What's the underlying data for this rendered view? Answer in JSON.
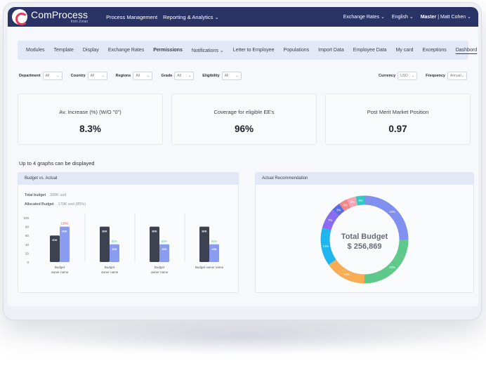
{
  "brand": {
    "name": "ComProcess",
    "sub": "from Zoran"
  },
  "topnav": {
    "process": "Process Management",
    "reporting": "Reporting & Analytics",
    "reporting_caret": "⌄"
  },
  "topright": {
    "exchange": "Exchange Rates ⌄",
    "language": "English ⌄",
    "role": "Master",
    "user": " | Matt Cohen ⌄"
  },
  "tabs": [
    "Modules",
    "Template",
    "Display",
    "Exchange Rates",
    "Permissions",
    "Notifications ⌄",
    "Letter to Employee",
    "Populations",
    "Import Data",
    "Employee Data",
    "My card",
    "Exceptions",
    "Dashbord"
  ],
  "filters": [
    {
      "label": "Department",
      "value": "All"
    },
    {
      "label": "Country",
      "value": "All"
    },
    {
      "label": "Regions",
      "value": "All"
    },
    {
      "label": "Grade",
      "value": "All"
    },
    {
      "label": "Eligibility",
      "value": "All"
    }
  ],
  "filters_right": [
    {
      "label": "Currency",
      "value": "USD"
    },
    {
      "label": "Frequency",
      "value": "Annual"
    }
  ],
  "kpis": [
    {
      "label": "Av. Increase (%) (W/O \"0\")",
      "value": "8.3%"
    },
    {
      "label": "Coverage for eligible EE's",
      "value": "96%"
    },
    {
      "label": "Post Merit Market Position",
      "value": "0.97"
    }
  ],
  "graphs_note": "Up to 4 graphs can be displayed",
  "budget_panel": {
    "title": "Budget vs. Actual",
    "total_label": "Total budget",
    "total_value": "200K usd",
    "allocated_label": "Allocated Budget",
    "allocated_value": "170K usd (85%)"
  },
  "donut_panel": {
    "title": "Actual Recommendation",
    "center_title": "Total Budget",
    "center_value": "$ 256,869"
  },
  "colors": {
    "navy": "#2a3366",
    "dark_bar": "#3d4250",
    "blue_bar": "#8a9cf0",
    "red": "#e4415c",
    "green": "#58c28e",
    "tab_bg": "#e3e8f6"
  },
  "chart_data": [
    {
      "type": "bar",
      "title": "Budget vs. Actual",
      "yticks": [
        "100",
        "80",
        "60",
        "40",
        "20",
        "0"
      ],
      "ylim": [
        0,
        100
      ],
      "categories": [
        "Budget owner name",
        "Budget owner name",
        "Budget owner name",
        "Budget owner name"
      ],
      "series": [
        {
          "values": [
            60,
            80,
            80,
            80
          ],
          "labels": [
            "60K",
            "80K",
            "80K",
            "80K"
          ],
          "color": "#3d4250"
        },
        {
          "values": [
            80,
            40,
            40,
            40
          ],
          "labels": [
            "80K",
            "40K",
            "40K",
            "40K"
          ],
          "color": "#8a9cf0",
          "pct": [
            "133%",
            "50%",
            "50%",
            "50%"
          ],
          "pct_colors": [
            "#e4415c",
            "#58c28e",
            "#58c28e",
            "#58c28e"
          ]
        }
      ]
    },
    {
      "type": "pie",
      "title": "Actual Recommendation",
      "slices": [
        {
          "label": "13%",
          "value": 13,
          "color": "#1fb6f0"
        },
        {
          "label": "7%",
          "value": 7,
          "color": "#8a6cf0"
        },
        {
          "label": "3%",
          "value": 3,
          "color": "#5b6be0"
        },
        {
          "label": "3%",
          "value": 3,
          "color": "#ef8787"
        },
        {
          "label": "3%",
          "value": 3,
          "color": "#f7a3b4"
        },
        {
          "label": "3%",
          "value": 3,
          "color": "#33c9c3"
        },
        {
          "label": "23%",
          "value": 23,
          "color": "#7f90ee"
        },
        {
          "label": "23%",
          "value": 23,
          "color": "#5ec98a"
        },
        {
          "label": "14%",
          "value": 14,
          "color": "#f6ad55"
        }
      ]
    }
  ]
}
